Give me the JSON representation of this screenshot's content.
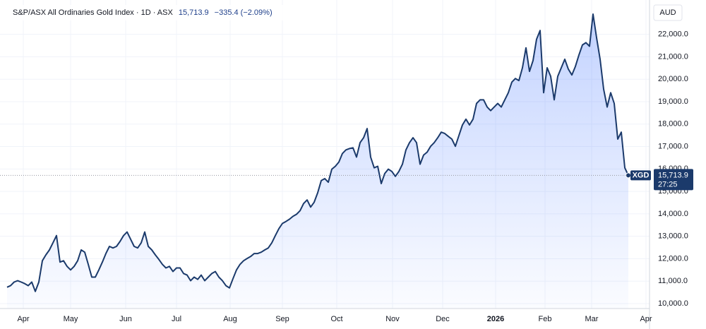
{
  "chart_data": {
    "type": "area",
    "title": "S&P/ASX All Ordinaries Gold Index · 1D · ASX",
    "price": "15,713.9",
    "change": "−335.4 (−2.09%)",
    "currency": "AUD",
    "countdown": "27:25",
    "grid": true,
    "series": [
      {
        "name": "XGD",
        "color": "#1b3a6b",
        "fill": "#2962ff",
        "values": [
          10730,
          10800,
          10960,
          11020,
          10960,
          10890,
          10800,
          10960,
          10540,
          10960,
          11910,
          12170,
          12390,
          12710,
          13030,
          11850,
          11910,
          11660,
          11500,
          11660,
          11910,
          12390,
          12290,
          11750,
          11180,
          11180,
          11500,
          11850,
          12230,
          12550,
          12480,
          12550,
          12770,
          13030,
          13190,
          12870,
          12550,
          12480,
          12710,
          13190,
          12550,
          12390,
          12170,
          11970,
          11750,
          11590,
          11660,
          11430,
          11590,
          11590,
          11340,
          11270,
          11020,
          11180,
          11080,
          11270,
          11020,
          11180,
          11340,
          11430,
          11180,
          11020,
          10800,
          10700,
          11110,
          11500,
          11750,
          11910,
          12010,
          12100,
          12230,
          12230,
          12290,
          12390,
          12480,
          12710,
          13030,
          13340,
          13570,
          13660,
          13760,
          13890,
          13980,
          14140,
          14460,
          14620,
          14300,
          14520,
          14940,
          15480,
          15570,
          15410,
          15990,
          16120,
          16310,
          16690,
          16850,
          16910,
          16940,
          16530,
          17170,
          17390,
          17800,
          16530,
          16050,
          16120,
          15350,
          15800,
          15990,
          15890,
          15670,
          15890,
          16210,
          16850,
          17170,
          17390,
          17170,
          16210,
          16620,
          16750,
          17010,
          17170,
          17390,
          17640,
          17580,
          17450,
          17330,
          17010,
          17490,
          17960,
          18220,
          17960,
          18220,
          18920,
          19080,
          19080,
          18760,
          18600,
          18760,
          18920,
          18760,
          19080,
          19400,
          19870,
          20030,
          19940,
          20510,
          21400,
          20350,
          20830,
          21780,
          22170,
          19400,
          20510,
          20130,
          19080,
          20130,
          20510,
          20890,
          20450,
          20190,
          20570,
          21080,
          21530,
          21630,
          21470,
          22900,
          21850,
          20890,
          19560,
          18760,
          19400,
          18920,
          17330,
          17640,
          16050,
          15713.9
        ]
      }
    ],
    "xlim": [
      0,
      182
    ],
    "xticks": [
      {
        "value": 4.6,
        "label": "Apr"
      },
      {
        "value": 18,
        "label": "May"
      },
      {
        "value": 33.6,
        "label": "Jun"
      },
      {
        "value": 48,
        "label": "Jul"
      },
      {
        "value": 63.2,
        "label": "Aug"
      },
      {
        "value": 78,
        "label": "Sep"
      },
      {
        "value": 93.4,
        "label": "Oct"
      },
      {
        "value": 109.2,
        "label": "Nov"
      },
      {
        "value": 123.4,
        "label": "Dec"
      },
      {
        "value": 138.4,
        "label": "2026"
      },
      {
        "value": 152.4,
        "label": "Feb"
      },
      {
        "value": 165.6,
        "label": "Mar"
      },
      {
        "value": 181,
        "label": "Apr"
      }
    ],
    "ylim": [
      9780,
      23530
    ],
    "yticks": [
      {
        "value": 10000,
        "label": "10,000.0"
      },
      {
        "value": 11000,
        "label": "11,000.0"
      },
      {
        "value": 12000,
        "label": "12,000.0"
      },
      {
        "value": 13000,
        "label": "13,000.0"
      },
      {
        "value": 14000,
        "label": "14,000.0"
      },
      {
        "value": 15000,
        "label": "15,000.0"
      },
      {
        "value": 16000,
        "label": "16,000.0"
      },
      {
        "value": 17000,
        "label": "17,000.0"
      },
      {
        "value": 18000,
        "label": "18,000.0"
      },
      {
        "value": 19000,
        "label": "19,000.0"
      },
      {
        "value": 20000,
        "label": "20,000.0"
      },
      {
        "value": 21000,
        "label": "21,000.0"
      },
      {
        "value": 22000,
        "label": "22,000.0"
      }
    ]
  }
}
